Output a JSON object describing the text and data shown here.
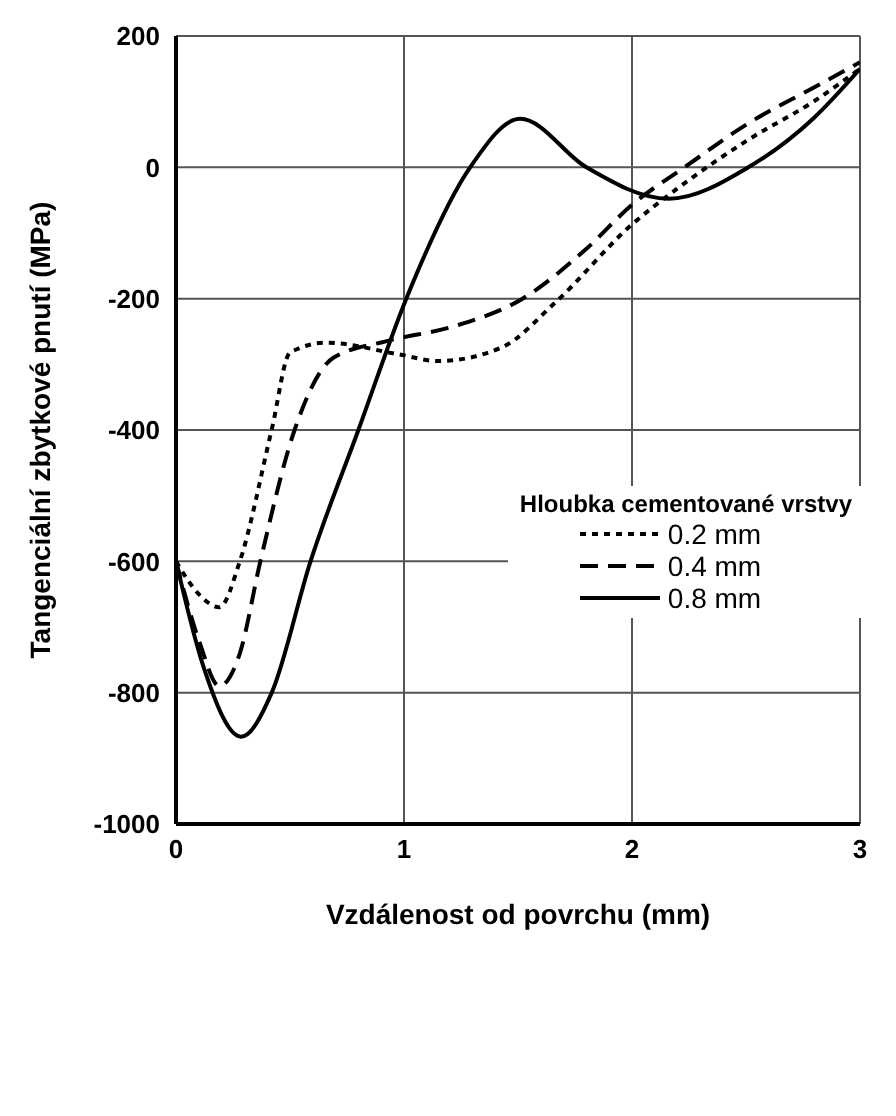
{
  "chart_data": {
    "type": "line",
    "xlabel": "Vzdálenost od povrchu (mm)",
    "ylabel": "Tangenciální zbytkové pnutí (MPa)",
    "legend_title": "Hloubka cementované vrstvy",
    "xlim": [
      0,
      3
    ],
    "ylim": [
      -1000,
      200
    ],
    "xticks": [
      0,
      1,
      2,
      3
    ],
    "yticks": [
      -1000,
      -800,
      -600,
      -400,
      -200,
      0,
      200
    ],
    "grid": true,
    "legend": "right",
    "marker": "none",
    "series": [
      {
        "name": "0.2 mm",
        "color": "#000000",
        "line_style": "dotted",
        "x": [
          0,
          0.1,
          0.19,
          0.28,
          0.42,
          0.5,
          0.66,
          0.98,
          1.15,
          1.43,
          1.66,
          2.0,
          2.2,
          2.51,
          2.8,
          3.0
        ],
        "values": [
          -600,
          -650,
          -670,
          -600,
          -399,
          -282,
          -267,
          -285,
          -295,
          -274,
          -207,
          -87,
          -32,
          42,
          101,
          150
        ]
      },
      {
        "name": "0.4 mm",
        "color": "#000000",
        "line_style": "dashed",
        "x": [
          0,
          0.1,
          0.19,
          0.28,
          0.37,
          0.52,
          0.69,
          0.92,
          1.23,
          1.52,
          1.8,
          2.0,
          2.23,
          2.51,
          2.8,
          3.0
        ],
        "values": [
          -600,
          -720,
          -790,
          -740,
          -600,
          -400,
          -290,
          -265,
          -241,
          -200,
          -124,
          -57,
          0,
          67,
          122,
          160
        ]
      },
      {
        "name": "0.8 mm",
        "color": "#000000",
        "line_style": "solid",
        "x": [
          0,
          0.12,
          0.285,
          0.42,
          0.59,
          0.8,
          1.01,
          1.29,
          1.51,
          1.8,
          2.16,
          2.51,
          2.8,
          3.0
        ],
        "values": [
          -600,
          -760,
          -867,
          -800,
          -600,
          -400,
          -200,
          0,
          74,
          0,
          -48,
          0,
          76,
          150
        ]
      }
    ]
  }
}
